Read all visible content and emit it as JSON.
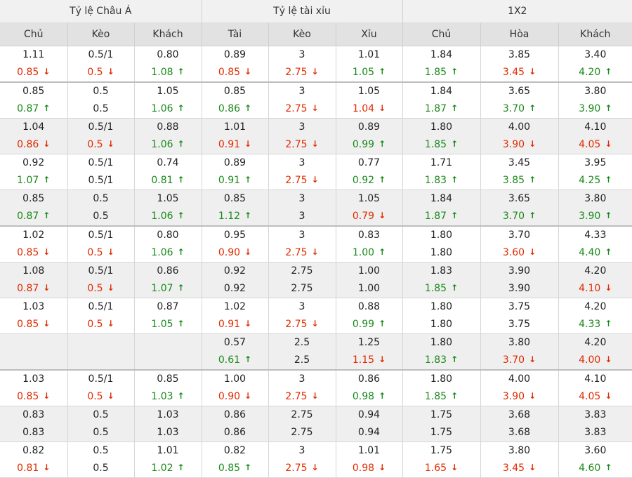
{
  "groups": [
    "Tỷ lệ Châu Á",
    "Tỷ lệ tài xỉu",
    "1X2"
  ],
  "columns": [
    "Chủ",
    "Kèo",
    "Khách",
    "Tài",
    "Kèo",
    "Xỉu",
    "Chủ",
    "Hòa",
    "Khách"
  ],
  "colors": {
    "up": "#1a8a1a",
    "down": "#e12b00"
  },
  "rows": [
    {
      "alt": false,
      "thick": true,
      "cells": [
        [
          "1.11",
          "0.85",
          "d"
        ],
        [
          "0.5/1",
          "0.5",
          "d"
        ],
        [
          "0.80",
          "1.08",
          "u"
        ],
        [
          "0.89",
          "0.85",
          "d"
        ],
        [
          "3",
          "2.75",
          "d"
        ],
        [
          "1.01",
          "1.05",
          "u"
        ],
        [
          "1.84",
          "1.85",
          "u"
        ],
        [
          "3.85",
          "3.45",
          "d"
        ],
        [
          "3.40",
          "4.20",
          "u"
        ]
      ]
    },
    {
      "alt": false,
      "thick": false,
      "cells": [
        [
          "0.85",
          "0.87",
          "u"
        ],
        [
          "0.5",
          "0.5",
          ""
        ],
        [
          "1.05",
          "1.06",
          "u"
        ],
        [
          "0.85",
          "0.86",
          "u"
        ],
        [
          "3",
          "2.75",
          "d"
        ],
        [
          "1.05",
          "1.04",
          "d"
        ],
        [
          "1.84",
          "1.87",
          "u"
        ],
        [
          "3.65",
          "3.70",
          "u"
        ],
        [
          "3.80",
          "3.90",
          "u"
        ]
      ]
    },
    {
      "alt": true,
      "thick": false,
      "cells": [
        [
          "1.04",
          "0.86",
          "d"
        ],
        [
          "0.5/1",
          "0.5",
          "d"
        ],
        [
          "0.88",
          "1.06",
          "u"
        ],
        [
          "1.01",
          "0.91",
          "d"
        ],
        [
          "3",
          "2.75",
          "d"
        ],
        [
          "0.89",
          "0.99",
          "u"
        ],
        [
          "1.80",
          "1.85",
          "u"
        ],
        [
          "4.00",
          "3.90",
          "d"
        ],
        [
          "4.10",
          "4.05",
          "d"
        ]
      ]
    },
    {
      "alt": false,
      "thick": false,
      "cells": [
        [
          "0.92",
          "1.07",
          "u"
        ],
        [
          "0.5/1",
          "0.5/1",
          ""
        ],
        [
          "0.74",
          "0.81",
          "u"
        ],
        [
          "0.89",
          "0.91",
          "u"
        ],
        [
          "3",
          "2.75",
          "d"
        ],
        [
          "0.77",
          "0.92",
          "u"
        ],
        [
          "1.71",
          "1.83",
          "u"
        ],
        [
          "3.45",
          "3.85",
          "u"
        ],
        [
          "3.95",
          "4.25",
          "u"
        ]
      ]
    },
    {
      "alt": true,
      "thick": true,
      "cells": [
        [
          "0.85",
          "0.87",
          "u"
        ],
        [
          "0.5",
          "0.5",
          ""
        ],
        [
          "1.05",
          "1.06",
          "u"
        ],
        [
          "0.85",
          "1.12",
          "u"
        ],
        [
          "3",
          "3",
          ""
        ],
        [
          "1.05",
          "0.79",
          "d"
        ],
        [
          "1.84",
          "1.87",
          "u"
        ],
        [
          "3.65",
          "3.70",
          "u"
        ],
        [
          "3.80",
          "3.90",
          "u"
        ]
      ]
    },
    {
      "alt": false,
      "thick": false,
      "cells": [
        [
          "1.02",
          "0.85",
          "d"
        ],
        [
          "0.5/1",
          "0.5",
          "d"
        ],
        [
          "0.80",
          "1.06",
          "u"
        ],
        [
          "0.95",
          "0.90",
          "d"
        ],
        [
          "3",
          "2.75",
          "d"
        ],
        [
          "0.83",
          "1.00",
          "u"
        ],
        [
          "1.80",
          "1.80",
          ""
        ],
        [
          "3.70",
          "3.60",
          "d"
        ],
        [
          "4.33",
          "4.40",
          "u"
        ]
      ]
    },
    {
      "alt": true,
      "thick": false,
      "cells": [
        [
          "1.08",
          "0.87",
          "d"
        ],
        [
          "0.5/1",
          "0.5",
          "d"
        ],
        [
          "0.86",
          "1.07",
          "u"
        ],
        [
          "0.92",
          "0.92",
          ""
        ],
        [
          "2.75",
          "2.75",
          ""
        ],
        [
          "1.00",
          "1.00",
          ""
        ],
        [
          "1.83",
          "1.85",
          "u"
        ],
        [
          "3.90",
          "3.90",
          ""
        ],
        [
          "4.20",
          "4.10",
          "d"
        ]
      ]
    },
    {
      "alt": false,
      "thick": false,
      "cells": [
        [
          "1.03",
          "0.85",
          "d"
        ],
        [
          "0.5/1",
          "0.5",
          "d"
        ],
        [
          "0.87",
          "1.05",
          "u"
        ],
        [
          "1.02",
          "0.91",
          "d"
        ],
        [
          "3",
          "2.75",
          "d"
        ],
        [
          "0.88",
          "0.99",
          "u"
        ],
        [
          "1.80",
          "1.80",
          ""
        ],
        [
          "3.75",
          "3.75",
          ""
        ],
        [
          "4.20",
          "4.33",
          "u"
        ]
      ]
    },
    {
      "alt": true,
      "thick": true,
      "cells": [
        [
          "",
          "",
          ""
        ],
        [
          "",
          "",
          ""
        ],
        [
          "",
          "",
          ""
        ],
        [
          "0.57",
          "0.61",
          "u"
        ],
        [
          "2.5",
          "2.5",
          ""
        ],
        [
          "1.25",
          "1.15",
          "d"
        ],
        [
          "1.80",
          "1.83",
          "u"
        ],
        [
          "3.80",
          "3.70",
          "d"
        ],
        [
          "4.20",
          "4.00",
          "d"
        ]
      ]
    },
    {
      "alt": false,
      "thick": false,
      "cells": [
        [
          "1.03",
          "0.85",
          "d"
        ],
        [
          "0.5/1",
          "0.5",
          "d"
        ],
        [
          "0.85",
          "1.03",
          "u"
        ],
        [
          "1.00",
          "0.90",
          "d"
        ],
        [
          "3",
          "2.75",
          "d"
        ],
        [
          "0.86",
          "0.98",
          "u"
        ],
        [
          "1.80",
          "1.85",
          "u"
        ],
        [
          "4.00",
          "3.90",
          "d"
        ],
        [
          "4.10",
          "4.05",
          "d"
        ]
      ]
    },
    {
      "alt": true,
      "thick": false,
      "cells": [
        [
          "0.83",
          "0.83",
          ""
        ],
        [
          "0.5",
          "0.5",
          ""
        ],
        [
          "1.03",
          "1.03",
          ""
        ],
        [
          "0.86",
          "0.86",
          ""
        ],
        [
          "2.75",
          "2.75",
          ""
        ],
        [
          "0.94",
          "0.94",
          ""
        ],
        [
          "1.75",
          "1.75",
          ""
        ],
        [
          "3.68",
          "3.68",
          ""
        ],
        [
          "3.83",
          "3.83",
          ""
        ]
      ]
    },
    {
      "alt": false,
      "thick": false,
      "cells": [
        [
          "0.82",
          "0.81",
          "d"
        ],
        [
          "0.5",
          "0.5",
          ""
        ],
        [
          "1.01",
          "1.02",
          "u"
        ],
        [
          "0.82",
          "0.85",
          "u"
        ],
        [
          "3",
          "2.75",
          "d"
        ],
        [
          "1.01",
          "0.98",
          "d"
        ],
        [
          "1.75",
          "1.65",
          "d"
        ],
        [
          "3.80",
          "3.45",
          "d"
        ],
        [
          "3.60",
          "4.60",
          "u"
        ]
      ]
    }
  ]
}
